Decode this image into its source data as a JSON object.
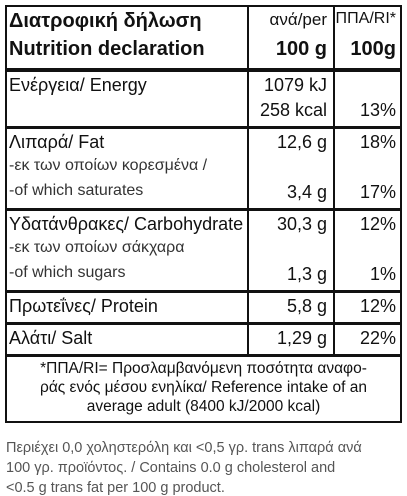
{
  "header": {
    "title_el": "Διατροφική δήλωση",
    "title_en": "Nutrition declaration",
    "per_label": "ανά/per",
    "per_unit": "100 g",
    "ri_label": "ΠΠΑ/RI*",
    "ri_unit": "100g"
  },
  "rows": [
    [
      {
        "label": "Ενέργεια/ Energy",
        "value": "1079 kJ"
      },
      {
        "value": "258 kcal",
        "ri": "13%"
      }
    ],
    [
      {
        "label": "Λιπαρά/ Fat",
        "value": "12,6 g",
        "ri": "18%"
      },
      {
        "label": "-εκ των οποίων κορεσμένα /"
      },
      {
        "label": "-of which saturates",
        "value": "3,4 g",
        "ri": "17%"
      }
    ],
    [
      {
        "label": "Υδατάνθρακες/ Carbohydrate",
        "value": "30,3 g",
        "ri": "12%"
      },
      {
        "label": "-εκ των οποίων  σάκχαρα"
      },
      {
        "label": "-of which sugars",
        "value": "1,3 g",
        "ri": "1%"
      }
    ],
    [
      {
        "label": "Πρωτεΐνες/ Protein",
        "value": "5,8 g",
        "ri": "12%"
      }
    ],
    [
      {
        "label": "Αλάτι/ Salt",
        "value": "1,29 g",
        "ri": "22%"
      }
    ]
  ],
  "footnote": [
    "*ΠΠΑ/RI= Προσλαμβανόμενη ποσότητα αναφο-",
    "ράς ενός μέσου ενηλίκα/ Reference intake of an",
    "average adult (8400 kJ/2000 kcal)"
  ],
  "note": [
    "Περιέχει 0,0 χοληστερόλη και <0,5 γρ. trans λιπαρά ανά",
    "100 γρ. προϊόντος. / Contains 0.0 g cholesterol and",
    "<0.5 g trans fat per 100 g product."
  ]
}
